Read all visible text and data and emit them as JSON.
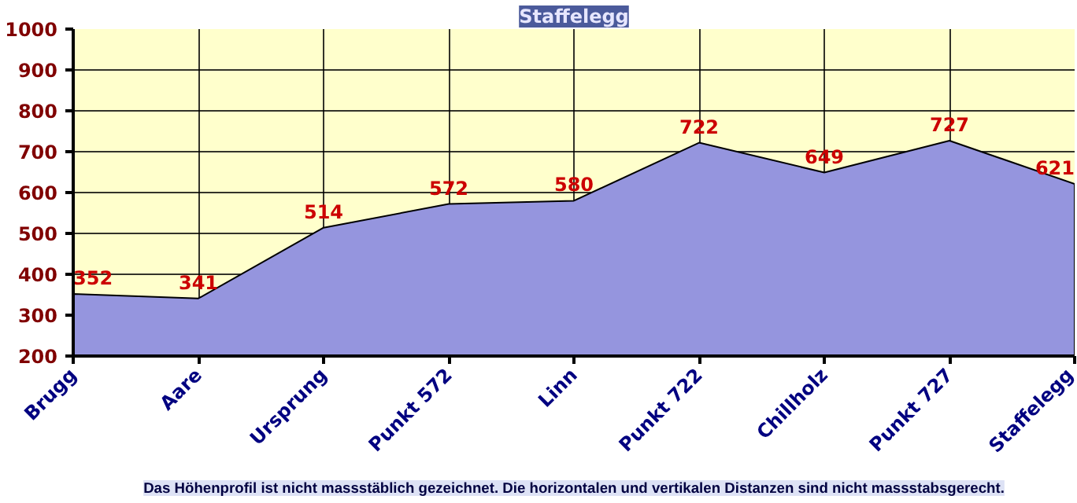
{
  "chart_data": {
    "type": "area",
    "title": "Staffelegg",
    "categories": [
      "Brugg",
      "Aare",
      "Ursprung",
      "Punkt 572",
      "Linn",
      "Punkt 722",
      "Chillholz",
      "Punkt 727",
      "Staffelegg"
    ],
    "values": [
      352,
      341,
      514,
      572,
      580,
      722,
      649,
      727,
      621
    ],
    "color": "#9595de",
    "ylim": [
      200,
      1000
    ],
    "yticks": [
      200,
      300,
      400,
      500,
      600,
      700,
      800,
      900,
      1000
    ],
    "grid": true,
    "data_labels": true,
    "annotations": [
      "Das Höhenprofil ist nicht massstäblich gezeichnet. Die horizontalen und vertikalen Distanzen sind nicht massstabsgerecht."
    ]
  }
}
